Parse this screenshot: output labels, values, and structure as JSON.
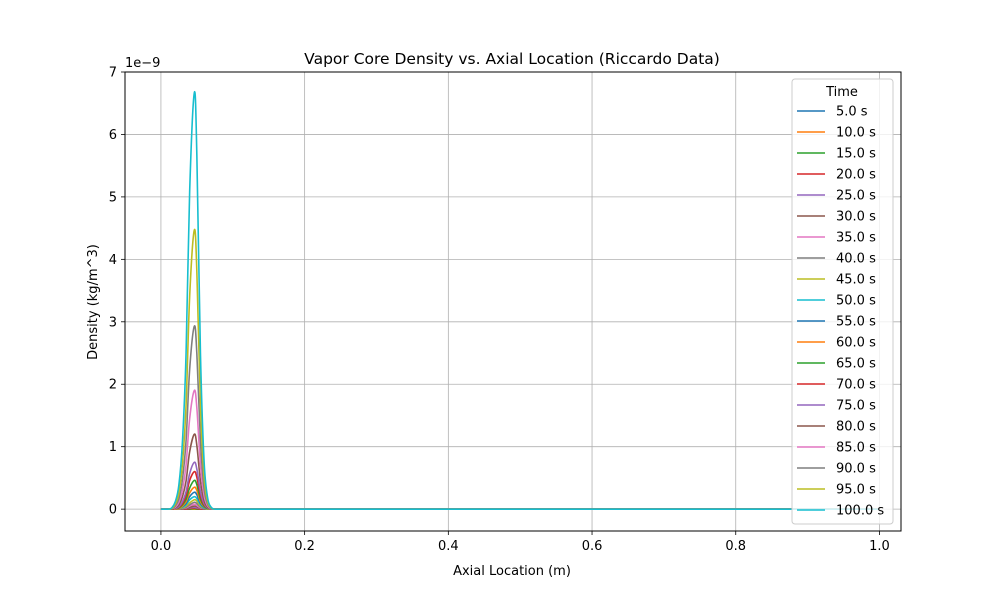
{
  "chart_data": {
    "type": "line",
    "title": "Vapor Core Density vs. Axial Location (Riccardo Data)",
    "xlabel": "Axial Location (m)",
    "ylabel": "Density (kg/m^3)",
    "y_offset_label": "1e−9",
    "xlim": [
      -0.05,
      1.03
    ],
    "ylim": [
      -0.35,
      7.0
    ],
    "y_scale_factor": 1e-09,
    "x_ticks": [
      0.0,
      0.2,
      0.4,
      0.6,
      0.8,
      1.0
    ],
    "x_tick_labels": [
      "0.0",
      "0.2",
      "0.4",
      "0.6",
      "0.8",
      "1.0"
    ],
    "y_ticks": [
      0,
      1,
      2,
      3,
      4,
      5,
      6,
      7
    ],
    "y_tick_labels": [
      "0",
      "1",
      "2",
      "3",
      "4",
      "5",
      "6",
      "7"
    ],
    "grid": true,
    "legend_title": "Time",
    "legend_position": "top-right",
    "x": [
      0.0,
      0.01,
      0.015,
      0.02,
      0.025,
      0.03,
      0.035,
      0.04,
      0.0465,
      0.05,
      0.055,
      0.06,
      0.065,
      0.07,
      0.075,
      0.08,
      0.09,
      0.1,
      0.2,
      0.4,
      0.6,
      0.8,
      1.0
    ],
    "series": [
      {
        "name": "5.0 s",
        "color": "#1f77b4",
        "values": [
          0,
          0,
          0,
          0,
          0,
          0,
          0,
          0,
          0,
          0,
          0,
          0,
          0,
          0,
          0,
          0,
          0,
          0,
          0,
          0,
          0,
          0,
          0
        ]
      },
      {
        "name": "10.0 s",
        "color": "#ff7f0e",
        "values": [
          0,
          0,
          0,
          0,
          0,
          0,
          0,
          0,
          0,
          0,
          0,
          0,
          0,
          0,
          0,
          0,
          0,
          0,
          0,
          0,
          0,
          0,
          0
        ]
      },
      {
        "name": "15.0 s",
        "color": "#2ca02c",
        "values": [
          0,
          0,
          0,
          0,
          0,
          0,
          0,
          0,
          0.01,
          0,
          0,
          0,
          0,
          0,
          0,
          0,
          0,
          0,
          0,
          0,
          0,
          0,
          0
        ]
      },
      {
        "name": "20.0 s",
        "color": "#d62728",
        "values": [
          0,
          0,
          0,
          0,
          0,
          0,
          0,
          0.01,
          0.02,
          0.01,
          0,
          0,
          0,
          0,
          0,
          0,
          0,
          0,
          0,
          0,
          0,
          0,
          0
        ]
      },
      {
        "name": "25.0 s",
        "color": "#9467bd",
        "values": [
          0,
          0,
          0,
          0,
          0,
          0,
          0.01,
          0.02,
          0.03,
          0.02,
          0.01,
          0,
          0,
          0,
          0,
          0,
          0,
          0,
          0,
          0,
          0,
          0,
          0
        ]
      },
      {
        "name": "30.0 s",
        "color": "#8c564b",
        "values": [
          0,
          0,
          0,
          0,
          0,
          0,
          0.01,
          0.03,
          0.05,
          0.04,
          0.01,
          0,
          0,
          0,
          0,
          0,
          0,
          0,
          0,
          0,
          0,
          0,
          0
        ]
      },
      {
        "name": "35.0 s",
        "color": "#e377c2",
        "values": [
          0,
          0,
          0,
          0,
          0,
          0.01,
          0.02,
          0.05,
          0.08,
          0.06,
          0.02,
          0.01,
          0,
          0,
          0,
          0,
          0,
          0,
          0,
          0,
          0,
          0,
          0
        ]
      },
      {
        "name": "40.0 s",
        "color": "#7f7f7f",
        "values": [
          0,
          0,
          0,
          0,
          0,
          0.01,
          0.03,
          0.07,
          0.11,
          0.09,
          0.03,
          0.01,
          0,
          0,
          0,
          0,
          0,
          0,
          0,
          0,
          0,
          0,
          0
        ]
      },
      {
        "name": "45.0 s",
        "color": "#bcbd22",
        "values": [
          0,
          0,
          0,
          0,
          0.01,
          0.02,
          0.05,
          0.1,
          0.15,
          0.13,
          0.05,
          0.02,
          0,
          0,
          0,
          0,
          0,
          0,
          0,
          0,
          0,
          0,
          0
        ]
      },
      {
        "name": "50.0 s",
        "color": "#17becf",
        "values": [
          0,
          0,
          0,
          0,
          0.01,
          0.03,
          0.07,
          0.15,
          0.2,
          0.17,
          0.07,
          0.02,
          0.01,
          0,
          0,
          0,
          0,
          0,
          0,
          0,
          0,
          0,
          0
        ]
      },
      {
        "name": "55.0 s",
        "color": "#1f77b4",
        "values": [
          0,
          0,
          0,
          0,
          0.01,
          0.04,
          0.09,
          0.2,
          0.27,
          0.23,
          0.09,
          0.03,
          0.01,
          0,
          0,
          0,
          0,
          0,
          0,
          0,
          0,
          0,
          0
        ]
      },
      {
        "name": "60.0 s",
        "color": "#ff7f0e",
        "values": [
          0,
          0,
          0,
          0,
          0.01,
          0.05,
          0.12,
          0.26,
          0.35,
          0.3,
          0.12,
          0.04,
          0.01,
          0,
          0,
          0,
          0,
          0,
          0,
          0,
          0,
          0,
          0
        ]
      },
      {
        "name": "65.0 s",
        "color": "#2ca02c",
        "values": [
          0,
          0,
          0,
          0.01,
          0.02,
          0.07,
          0.16,
          0.34,
          0.46,
          0.39,
          0.16,
          0.05,
          0.01,
          0,
          0,
          0,
          0,
          0,
          0,
          0,
          0,
          0,
          0
        ]
      },
      {
        "name": "70.0 s",
        "color": "#d62728",
        "values": [
          0,
          0,
          0,
          0.01,
          0.03,
          0.09,
          0.22,
          0.46,
          0.6,
          0.51,
          0.22,
          0.07,
          0.02,
          0,
          0,
          0,
          0,
          0,
          0,
          0,
          0,
          0,
          0
        ]
      },
      {
        "name": "75.0 s",
        "color": "#9467bd",
        "values": [
          0,
          0,
          0,
          0.01,
          0.04,
          0.12,
          0.28,
          0.57,
          0.75,
          0.64,
          0.28,
          0.09,
          0.02,
          0,
          0,
          0,
          0,
          0,
          0,
          0,
          0,
          0,
          0
        ]
      },
      {
        "name": "80.0 s",
        "color": "#8c564b",
        "values": [
          0,
          0,
          0,
          0.02,
          0.07,
          0.2,
          0.45,
          0.92,
          1.2,
          1.02,
          0.45,
          0.14,
          0.03,
          0.01,
          0,
          0,
          0,
          0,
          0,
          0,
          0,
          0,
          0
        ]
      },
      {
        "name": "85.0 s",
        "color": "#e377c2",
        "values": [
          0,
          0,
          0.01,
          0.03,
          0.11,
          0.31,
          0.71,
          1.45,
          1.9,
          1.62,
          0.71,
          0.22,
          0.05,
          0.01,
          0,
          0,
          0,
          0,
          0,
          0,
          0,
          0,
          0
        ]
      },
      {
        "name": "90.0 s",
        "color": "#7f7f7f",
        "values": [
          0,
          0,
          0.01,
          0.05,
          0.17,
          0.48,
          1.1,
          2.24,
          2.93,
          2.49,
          1.1,
          0.34,
          0.08,
          0.01,
          0,
          0,
          0,
          0,
          0,
          0,
          0,
          0,
          0
        ]
      },
      {
        "name": "95.0 s",
        "color": "#bcbd22",
        "values": [
          0,
          0,
          0.01,
          0.08,
          0.26,
          0.73,
          1.67,
          3.41,
          4.47,
          3.8,
          1.67,
          0.52,
          0.12,
          0.02,
          0,
          0,
          0,
          0,
          0,
          0,
          0,
          0,
          0
        ]
      },
      {
        "name": "100.0 s",
        "color": "#17becf",
        "values": [
          0,
          0,
          0.02,
          0.12,
          0.39,
          1.09,
          2.5,
          5.09,
          6.67,
          5.67,
          2.5,
          0.78,
          0.18,
          0.03,
          0,
          0,
          0,
          0,
          0,
          0,
          0,
          0,
          0
        ]
      }
    ]
  }
}
